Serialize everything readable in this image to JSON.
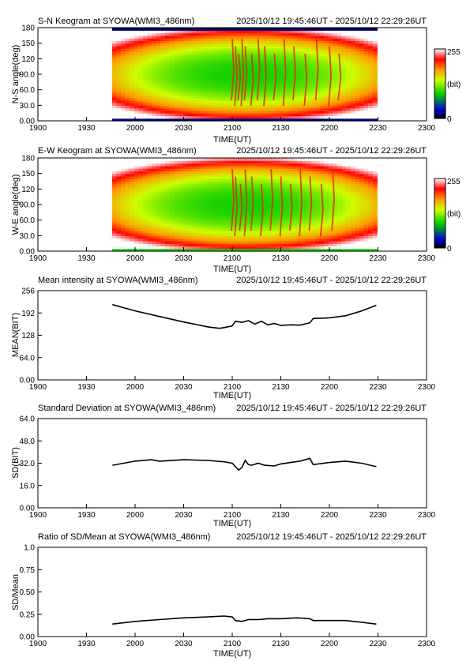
{
  "figure": {
    "width": 595,
    "height": 842
  },
  "colors": {
    "line": "#000000",
    "keogram_colormap": [
      "#000000",
      "#0000cc",
      "#00cc00",
      "#ccff00",
      "#ff9900",
      "#ff0000",
      "#ffffff"
    ]
  },
  "chart_data": [
    {
      "id": "sn",
      "type": "heatmap",
      "title": "S-N Keogram at SYOWA(WMI3_486nm)",
      "time_range": "2025/10/12 19:45:46UT - 2025/10/12 22:29:26UT",
      "xlabel": "TIME(UT)",
      "ylabel": "N-S angle(deg)",
      "xticks": [
        "1900",
        "1930",
        "2000",
        "2030",
        "2100",
        "2130",
        "2200",
        "2230",
        "2300"
      ],
      "yticks": [
        "0.00",
        "30.0",
        "60.0",
        "90.0",
        "120",
        "150",
        "180"
      ],
      "ylim": [
        0,
        180
      ],
      "colorbar": {
        "min_label": "0",
        "max_label": "255",
        "unit": "(bit)",
        "range": [
          0,
          255
        ]
      },
      "data_start": "19:45:46",
      "data_end": "22:29:26",
      "structured_times": [
        "21:00",
        "21:02",
        "21:04",
        "21:06",
        "21:08",
        "21:12",
        "21:16",
        "21:20",
        "21:26",
        "21:32",
        "21:38",
        "21:45",
        "21:52",
        "22:00",
        "22:06"
      ]
    },
    {
      "id": "ew",
      "type": "heatmap",
      "title": "E-W Keogram at SYOWA(WMI3_486nm)",
      "time_range": "2025/10/12 19:45:46UT - 2025/10/12 22:29:26UT",
      "xlabel": "TIME(UT)",
      "ylabel": "W-E angle(deg)",
      "xticks": [
        "1900",
        "1930",
        "2000",
        "2030",
        "2100",
        "2130",
        "2200",
        "2230",
        "2300"
      ],
      "yticks": [
        "0.00",
        "30.0",
        "60.0",
        "90.0",
        "120",
        "150",
        "180"
      ],
      "ylim": [
        0,
        180
      ],
      "colorbar": {
        "min_label": "0",
        "max_label": "255",
        "unit": "(bit)",
        "range": [
          0,
          255
        ]
      },
      "data_start": "19:45:46",
      "data_end": "22:29:26",
      "structured_times": [
        "21:00",
        "21:02",
        "21:05",
        "21:08",
        "21:12",
        "21:18",
        "21:24",
        "21:30",
        "21:36",
        "21:42",
        "21:48",
        "21:55",
        "22:02"
      ]
    },
    {
      "id": "mean",
      "type": "line",
      "title": "Mean intensity at SYOWA(WMI3_486nm)",
      "time_range": "2025/10/12 19:45:46UT - 2025/10/12 22:29:26UT",
      "xlabel": "TIME(UT)",
      "ylabel": "MEAN(BIT)",
      "xticks": [
        "1900",
        "1930",
        "2000",
        "2030",
        "2100",
        "2130",
        "2200",
        "2230",
        "2300"
      ],
      "yticks": [
        "0.00",
        "64.0",
        "128",
        "192",
        "256"
      ],
      "ylim": [
        0,
        256
      ],
      "x": [
        "19:46",
        "20:00",
        "20:15",
        "20:30",
        "20:45",
        "20:52",
        "20:55",
        "21:00",
        "21:02",
        "21:06",
        "21:10",
        "21:14",
        "21:18",
        "21:22",
        "21:26",
        "21:30",
        "21:36",
        "21:42",
        "21:48",
        "21:50",
        "22:00",
        "22:10",
        "22:20",
        "22:29"
      ],
      "y": [
        216,
        198,
        182,
        166,
        152,
        148,
        150,
        155,
        168,
        165,
        170,
        160,
        168,
        158,
        162,
        156,
        158,
        157,
        164,
        176,
        178,
        184,
        198,
        214
      ]
    },
    {
      "id": "sd",
      "type": "line",
      "title": "Standard Deviation at SYOWA(WMI3_486nm)",
      "time_range": "2025/10/12 19:45:46UT - 2025/10/12 22:29:26UT",
      "xlabel": "TIME(UT)",
      "ylabel": "SD(BIT)",
      "xticks": [
        "1900",
        "1930",
        "2000",
        "2030",
        "2100",
        "2130",
        "2200",
        "2230",
        "2300"
      ],
      "yticks": [
        "0.00",
        "16.0",
        "32.0",
        "48.0",
        "64.0"
      ],
      "ylim": [
        0,
        64
      ],
      "x": [
        "19:46",
        "20:00",
        "20:10",
        "20:15",
        "20:30",
        "20:45",
        "20:55",
        "21:00",
        "21:02",
        "21:04",
        "21:06",
        "21:08",
        "21:10",
        "21:12",
        "21:16",
        "21:20",
        "21:26",
        "21:30",
        "21:36",
        "21:42",
        "21:48",
        "21:50",
        "22:00",
        "22:10",
        "22:20",
        "22:29"
      ],
      "y": [
        30.5,
        33.5,
        34.5,
        33.5,
        34.5,
        34.0,
        33.0,
        32.0,
        29.5,
        27.0,
        29.0,
        34.0,
        31.0,
        30.5,
        32.0,
        30.5,
        30.0,
        31.5,
        32.5,
        33.5,
        35.5,
        31.0,
        32.5,
        33.5,
        32.0,
        29.5
      ]
    },
    {
      "id": "ratio",
      "type": "line",
      "title": "Ratio of SD/Mean at SYOWA(WMI3_486nm)",
      "time_range": "2025/10/12 19:45:46UT - 2025/10/12 22:29:26UT",
      "xlabel": "TIME(UT)",
      "ylabel": "SD/Mean",
      "xticks": [
        "1900",
        "1930",
        "2000",
        "2030",
        "2100",
        "2130",
        "2200",
        "2230",
        "2300"
      ],
      "yticks": [
        "0.00",
        "0.25",
        "0.50",
        "0.75",
        "1.0"
      ],
      "ylim": [
        0,
        1.0
      ],
      "x": [
        "19:46",
        "20:00",
        "20:15",
        "20:30",
        "20:45",
        "20:55",
        "21:00",
        "21:02",
        "21:06",
        "21:10",
        "21:16",
        "21:22",
        "21:30",
        "21:40",
        "21:48",
        "21:50",
        "22:00",
        "22:10",
        "22:20",
        "22:29"
      ],
      "y": [
        0.14,
        0.17,
        0.19,
        0.21,
        0.22,
        0.23,
        0.22,
        0.18,
        0.17,
        0.19,
        0.19,
        0.2,
        0.2,
        0.21,
        0.2,
        0.18,
        0.18,
        0.18,
        0.16,
        0.14
      ]
    }
  ]
}
